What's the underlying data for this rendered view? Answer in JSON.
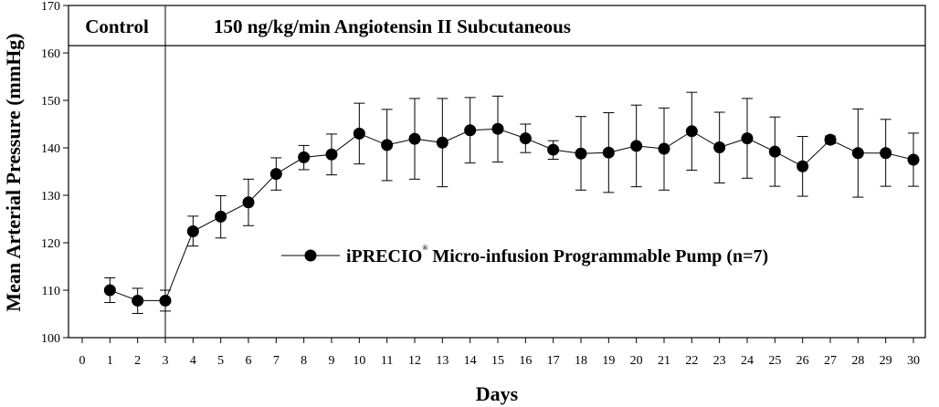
{
  "chart_data": {
    "type": "line",
    "title": "",
    "xlabel": "Days",
    "ylabel": "Mean Arterial Pressure (mmHg)",
    "xlim": [
      0,
      30
    ],
    "ylim": [
      100,
      170
    ],
    "x_ticks": [
      "0",
      "1",
      "2",
      "3",
      "4",
      "5",
      "6",
      "7",
      "8",
      "9",
      "10",
      "11",
      "12",
      "13",
      "14",
      "15",
      "16",
      "17",
      "18",
      "19",
      "20",
      "21",
      "22",
      "23",
      "24",
      "25",
      "26",
      "27",
      "28",
      "29",
      "30"
    ],
    "y_ticks": [
      "100",
      "110",
      "120",
      "130",
      "140",
      "150",
      "160",
      "170"
    ],
    "phases": [
      {
        "label": "Control",
        "start_day": 0,
        "end_day": 3
      },
      {
        "label": "150 ng/kg/min Angiotensin II Subcutaneous",
        "start_day": 3,
        "end_day": 30
      }
    ],
    "legend": {
      "label": "iPRECIO Micro-infusion Programmable Pump (n=7)",
      "mark": "®",
      "position": "center-right"
    },
    "series": [
      {
        "name": "iPRECIO Micro-infusion Programmable Pump (n=7)",
        "marker": "filled-circle",
        "color": "#000000",
        "x": [
          1,
          2,
          3,
          4,
          5,
          6,
          7,
          8,
          9,
          10,
          11,
          12,
          13,
          14,
          15,
          16,
          17,
          18,
          19,
          20,
          21,
          22,
          23,
          24,
          25,
          26,
          27,
          28,
          29,
          30
        ],
        "values": [
          110.0,
          107.8,
          107.8,
          122.4,
          125.5,
          128.5,
          134.5,
          138.0,
          138.6,
          143.0,
          140.6,
          141.9,
          141.1,
          143.7,
          144.0,
          142.0,
          139.6,
          138.8,
          139.0,
          140.4,
          139.8,
          143.5,
          140.1,
          142.0,
          139.2,
          136.1,
          141.7,
          138.9,
          138.9,
          137.5
        ],
        "error_upper": [
          112.6,
          110.4,
          110.0,
          125.6,
          129.9,
          133.4,
          137.9,
          140.5,
          142.9,
          149.4,
          148.1,
          150.4,
          150.4,
          150.6,
          150.9,
          145.0,
          141.5,
          146.6,
          147.4,
          149.0,
          148.4,
          151.7,
          147.5,
          150.4,
          146.5,
          142.4,
          142.5,
          148.2,
          146.0,
          143.1
        ],
        "error_lower": [
          107.4,
          105.1,
          105.6,
          119.3,
          121.0,
          123.6,
          131.1,
          135.4,
          134.3,
          136.6,
          133.1,
          133.4,
          131.8,
          136.8,
          137.0,
          139.0,
          137.6,
          131.1,
          130.6,
          131.8,
          131.1,
          135.3,
          132.6,
          133.6,
          131.9,
          129.8,
          140.9,
          129.6,
          131.9,
          131.9
        ]
      }
    ]
  }
}
